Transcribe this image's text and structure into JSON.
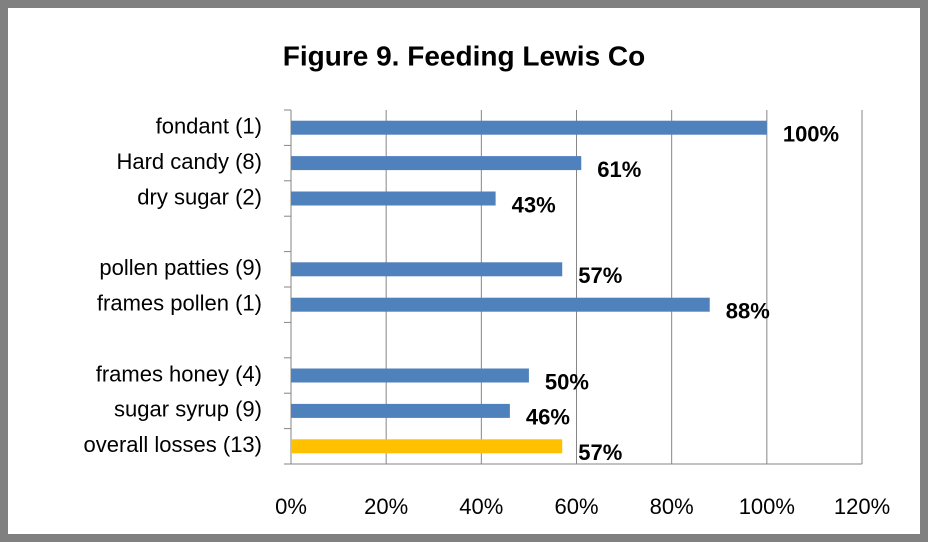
{
  "chart_data": {
    "type": "bar",
    "orientation": "horizontal",
    "title": "Figure 9.  Feeding Lewis Co",
    "categories": [
      "fondant (1)",
      "Hard candy (8)",
      "dry sugar (2)",
      null,
      "pollen patties (9)",
      "frames pollen (1)",
      null,
      "frames honey (4)",
      "sugar syrup (9)",
      "overall losses (13)"
    ],
    "values": [
      100,
      61,
      43,
      null,
      57,
      88,
      null,
      50,
      46,
      57
    ],
    "value_labels": [
      "100%",
      "61%",
      "43%",
      null,
      "57%",
      "88%",
      null,
      "50%",
      "46%",
      "57%"
    ],
    "colors": [
      "#4f81bd",
      "#4f81bd",
      "#4f81bd",
      null,
      "#4f81bd",
      "#4f81bd",
      null,
      "#4f81bd",
      "#4f81bd",
      "#ffc000"
    ],
    "xlim": [
      0,
      120
    ],
    "xticks": [
      {
        "value": 0,
        "label": "0%"
      },
      {
        "value": 20,
        "label": "20%"
      },
      {
        "value": 40,
        "label": "40%"
      },
      {
        "value": 60,
        "label": "60%"
      },
      {
        "value": 80,
        "label": "80%"
      },
      {
        "value": 100,
        "label": "100%"
      },
      {
        "value": 120,
        "label": "120%"
      }
    ],
    "grid": true
  }
}
